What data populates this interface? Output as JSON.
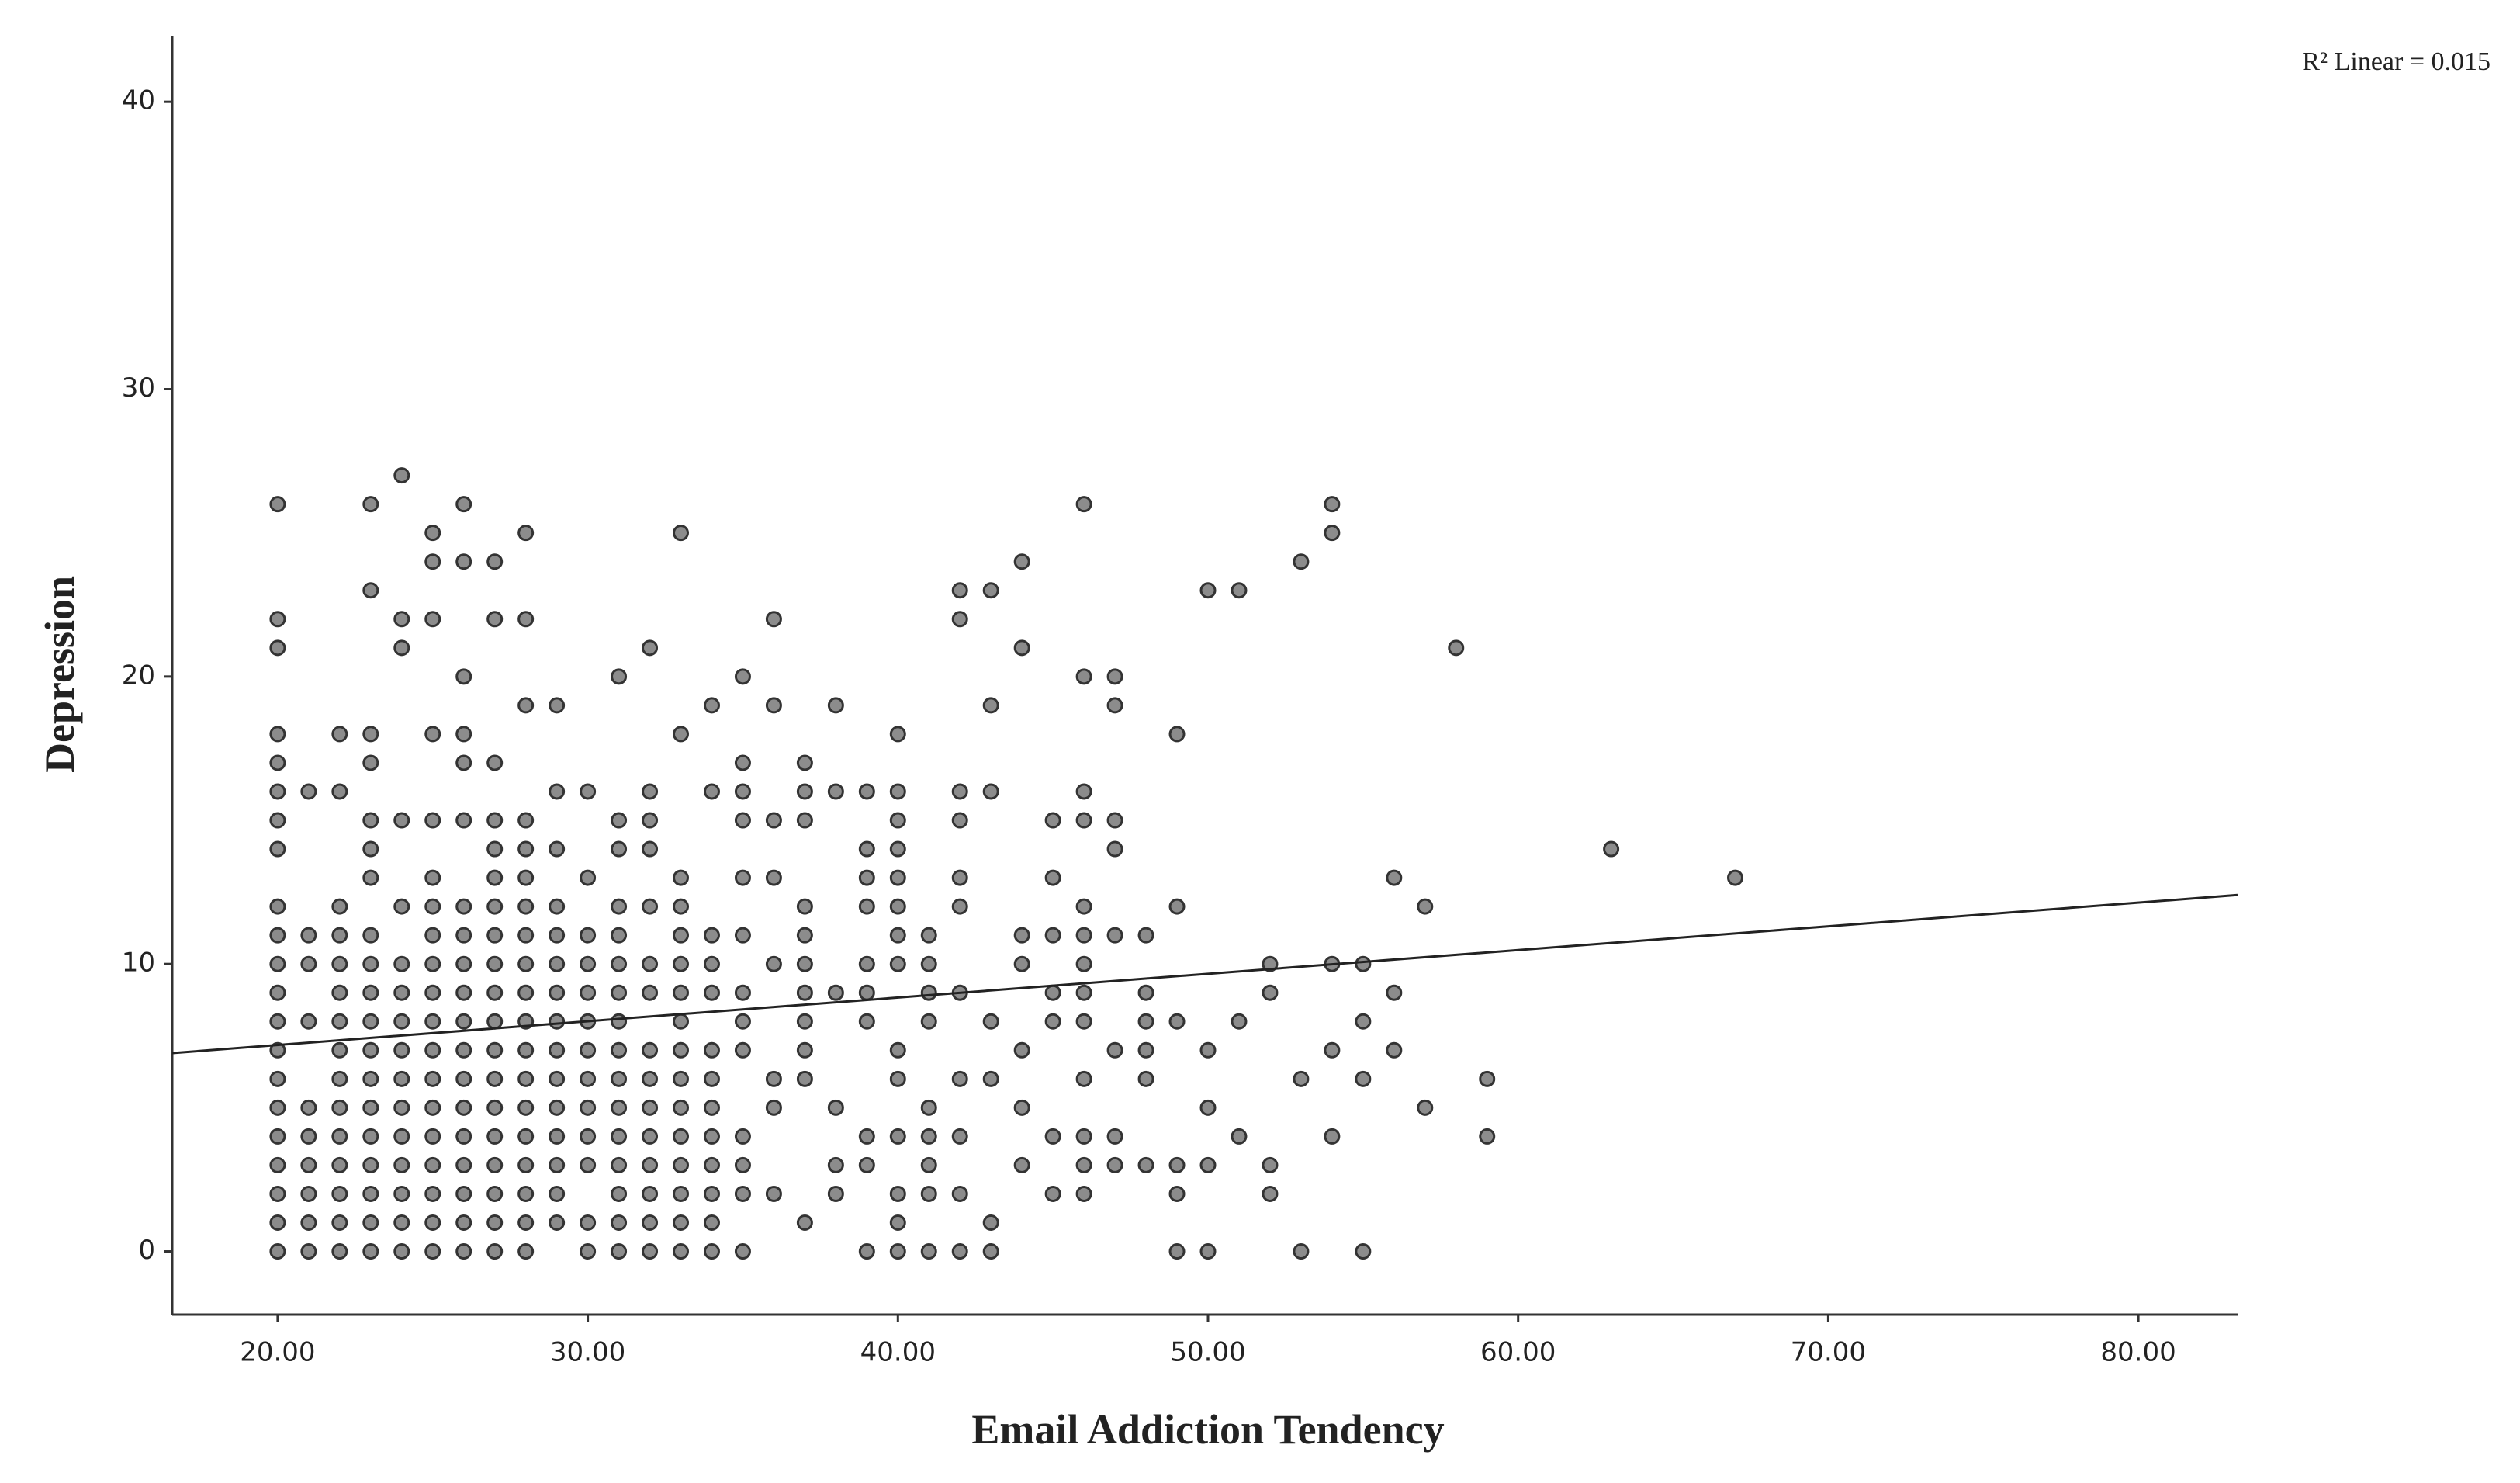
{
  "chart_data": {
    "type": "scatter",
    "xlabel": "Email Addiction Tendency",
    "ylabel": "Depression",
    "annotation": "R² Linear = 0.015",
    "xlim": [
      16.6,
      83.2
    ],
    "ylim": [
      -2.2,
      42.3
    ],
    "xticks": [
      {
        "value": 20,
        "label": "20.00"
      },
      {
        "value": 30,
        "label": "30.00"
      },
      {
        "value": 40,
        "label": "40.00"
      },
      {
        "value": 50,
        "label": "50.00"
      },
      {
        "value": 60,
        "label": "60.00"
      },
      {
        "value": 70,
        "label": "70.00"
      },
      {
        "value": 80,
        "label": "80.00"
      }
    ],
    "yticks": [
      0,
      10,
      20,
      30,
      40
    ],
    "grid": false,
    "fit": {
      "x": [
        16.6,
        83.2
      ],
      "y": [
        6.9,
        12.4
      ],
      "color": "#222222"
    },
    "series": [
      {
        "color": "#8c8c8c",
        "x": [
          20,
          20,
          20,
          20,
          20,
          20,
          20,
          20,
          20,
          20,
          20,
          20,
          20,
          20,
          20,
          20,
          20,
          20,
          20,
          20,
          20,
          21,
          21,
          21,
          21,
          21,
          21,
          21,
          21,
          21,
          21,
          22,
          22,
          22,
          22,
          22,
          22,
          22,
          22,
          22,
          22,
          22,
          22,
          22,
          22,
          22,
          23,
          23,
          23,
          23,
          23,
          23,
          23,
          23,
          23,
          23,
          23,
          23,
          23,
          23,
          23,
          23,
          23,
          23,
          23,
          24,
          24,
          24,
          24,
          24,
          24,
          24,
          24,
          24,
          24,
          24,
          24,
          24,
          24,
          24,
          24,
          25,
          25,
          25,
          25,
          25,
          25,
          25,
          25,
          25,
          25,
          25,
          25,
          25,
          25,
          25,
          25,
          25,
          25,
          25,
          26,
          26,
          26,
          26,
          26,
          26,
          26,
          26,
          26,
          26,
          26,
          26,
          26,
          26,
          26,
          26,
          26,
          26,
          26,
          27,
          27,
          27,
          27,
          27,
          27,
          27,
          27,
          27,
          27,
          27,
          27,
          27,
          27,
          27,
          27,
          27,
          27,
          27,
          28,
          28,
          28,
          28,
          28,
          28,
          28,
          28,
          28,
          28,
          28,
          28,
          28,
          28,
          28,
          28,
          28,
          28,
          28,
          29,
          29,
          29,
          29,
          29,
          29,
          29,
          29,
          29,
          29,
          29,
          29,
          29,
          29,
          29,
          30,
          30,
          30,
          30,
          30,
          30,
          30,
          30,
          30,
          30,
          30,
          30,
          30,
          31,
          31,
          31,
          31,
          31,
          31,
          31,
          31,
          31,
          31,
          31,
          31,
          31,
          31,
          31,
          31,
          32,
          32,
          32,
          32,
          32,
          32,
          32,
          32,
          32,
          32,
          32,
          32,
          32,
          32,
          32,
          33,
          33,
          33,
          33,
          33,
          33,
          33,
          33,
          33,
          33,
          33,
          33,
          33,
          33,
          33,
          33,
          34,
          34,
          34,
          34,
          34,
          34,
          34,
          34,
          34,
          34,
          34,
          34,
          34,
          35,
          35,
          35,
          35,
          35,
          35,
          35,
          35,
          35,
          35,
          35,
          35,
          35,
          36,
          36,
          36,
          36,
          36,
          36,
          36,
          36,
          37,
          37,
          37,
          37,
          37,
          37,
          37,
          37,
          37,
          37,
          37,
          38,
          38,
          38,
          38,
          38,
          38,
          39,
          39,
          39,
          39,
          39,
          39,
          39,
          39,
          39,
          39,
          40,
          40,
          40,
          40,
          40,
          40,
          40,
          40,
          40,
          40,
          40,
          40,
          40,
          40,
          41,
          41,
          41,
          41,
          41,
          41,
          41,
          41,
          41,
          42,
          42,
          42,
          42,
          42,
          42,
          42,
          42,
          42,
          42,
          42,
          43,
          43,
          43,
          43,
          43,
          43,
          43,
          44,
          44,
          44,
          44,
          44,
          44,
          44,
          45,
          45,
          45,
          45,
          45,
          45,
          45,
          46,
          46,
          46,
          46,
          46,
          46,
          46,
          46,
          46,
          46,
          46,
          46,
          46,
          47,
          47,
          47,
          47,
          47,
          47,
          47,
          47,
          48,
          48,
          48,
          48,
          48,
          48,
          49,
          49,
          49,
          49,
          49,
          49,
          50,
          50,
          50,
          50,
          50,
          51,
          51,
          51,
          52,
          52,
          52,
          52,
          53,
          53,
          53,
          54,
          54,
          54,
          54,
          54,
          55,
          55,
          55,
          55,
          56,
          56,
          56,
          57,
          57,
          58,
          59,
          59,
          63,
          67
        ],
        "y": [
          26,
          22,
          21,
          18,
          17,
          16,
          15,
          14,
          12,
          11,
          10,
          9,
          8,
          7,
          6,
          5,
          4,
          3,
          2,
          1,
          0,
          16,
          11,
          10,
          8,
          5,
          4,
          3,
          2,
          1,
          0,
          18,
          16,
          12,
          11,
          10,
          9,
          8,
          7,
          6,
          5,
          4,
          3,
          2,
          1,
          0,
          26,
          23,
          18,
          17,
          15,
          14,
          13,
          11,
          10,
          9,
          8,
          7,
          6,
          5,
          4,
          3,
          2,
          1,
          0,
          27,
          22,
          21,
          15,
          12,
          10,
          9,
          8,
          7,
          6,
          5,
          4,
          3,
          2,
          1,
          0,
          25,
          24,
          22,
          18,
          15,
          13,
          12,
          11,
          10,
          9,
          8,
          7,
          6,
          5,
          4,
          3,
          2,
          1,
          0,
          26,
          24,
          20,
          18,
          17,
          15,
          12,
          11,
          10,
          9,
          8,
          7,
          6,
          5,
          4,
          3,
          2,
          1,
          0,
          24,
          22,
          17,
          15,
          14,
          13,
          12,
          11,
          10,
          9,
          8,
          7,
          6,
          5,
          4,
          3,
          2,
          1,
          0,
          25,
          22,
          19,
          15,
          14,
          13,
          12,
          11,
          10,
          9,
          8,
          7,
          6,
          5,
          4,
          3,
          2,
          1,
          0,
          19,
          16,
          14,
          12,
          11,
          10,
          9,
          8,
          7,
          6,
          5,
          4,
          3,
          2,
          1,
          16,
          13,
          11,
          10,
          9,
          8,
          7,
          6,
          5,
          4,
          3,
          1,
          0,
          20,
          15,
          14,
          12,
          11,
          10,
          9,
          8,
          7,
          6,
          5,
          4,
          3,
          2,
          1,
          0,
          21,
          16,
          15,
          14,
          12,
          10,
          9,
          7,
          6,
          5,
          4,
          3,
          2,
          1,
          0,
          25,
          18,
          13,
          12,
          11,
          10,
          9,
          8,
          7,
          6,
          5,
          4,
          3,
          2,
          1,
          0,
          19,
          16,
          11,
          10,
          9,
          7,
          6,
          5,
          4,
          3,
          2,
          1,
          0,
          20,
          17,
          16,
          15,
          13,
          11,
          9,
          8,
          7,
          4,
          3,
          2,
          0,
          22,
          19,
          15,
          13,
          10,
          6,
          5,
          2,
          17,
          16,
          15,
          12,
          11,
          10,
          9,
          8,
          7,
          6,
          1,
          19,
          16,
          9,
          5,
          3,
          2,
          16,
          14,
          13,
          12,
          10,
          9,
          8,
          4,
          3,
          0,
          18,
          16,
          15,
          14,
          13,
          12,
          11,
          10,
          7,
          6,
          4,
          2,
          1,
          0,
          11,
          10,
          9,
          8,
          5,
          4,
          3,
          2,
          0,
          23,
          22,
          16,
          15,
          13,
          12,
          9,
          6,
          4,
          2,
          0,
          23,
          19,
          16,
          8,
          6,
          1,
          0,
          24,
          21,
          11,
          10,
          7,
          5,
          3,
          15,
          13,
          11,
          9,
          8,
          4,
          2,
          26,
          20,
          16,
          15,
          12,
          11,
          10,
          9,
          8,
          6,
          4,
          3,
          2,
          20,
          19,
          15,
          14,
          11,
          7,
          4,
          3,
          11,
          9,
          8,
          7,
          6,
          3,
          18,
          12,
          8,
          3,
          2,
          0,
          23,
          7,
          5,
          3,
          0,
          23,
          8,
          4,
          10,
          9,
          3,
          2,
          24,
          6,
          0,
          26,
          25,
          10,
          7,
          4,
          10,
          8,
          6,
          0,
          13,
          9,
          7,
          12,
          5,
          21,
          6,
          4,
          14,
          13
        ]
      }
    ]
  }
}
